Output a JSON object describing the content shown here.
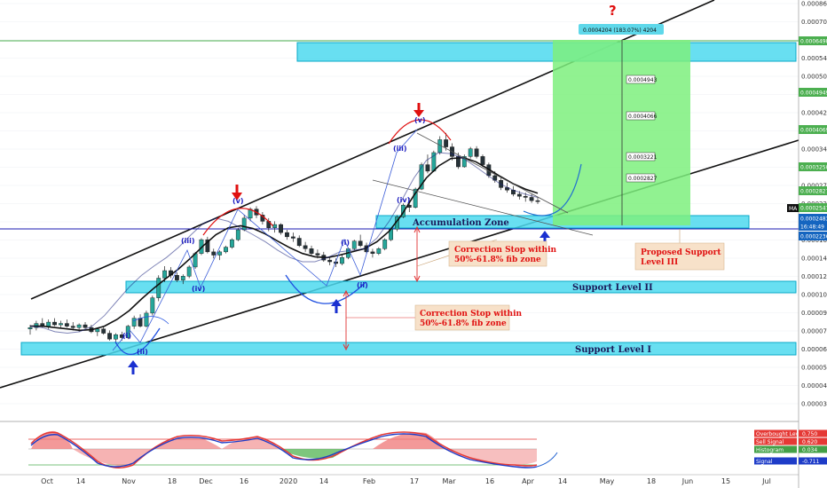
{
  "chart_data": {
    "type": "candlestick",
    "y_axis": {
      "scale": "log",
      "range": [
        0.00034,
        0.00086
      ],
      "ticks": [
        "0.0008600",
        "0.0007000",
        "0.0006000",
        "0.0005400",
        "0.0005000",
        "0.0004500",
        "0.0004200",
        "0.0003700",
        "0.0003400",
        "0.0003000",
        "0.0002700",
        "0.0002200",
        "0.0001800",
        "0.0001600",
        "0.0001400",
        "0.0001200",
        "0.0001050",
        "0.0000900",
        "0.0000760",
        "0.0000640",
        "0.0000520",
        "0.0000410",
        "0.0000300"
      ]
    },
    "x_axis": {
      "ticks": [
        "Oct",
        "14",
        "Nov",
        "18",
        "Dec",
        "16",
        "2020",
        "14",
        "Feb",
        "17",
        "Mar",
        "16",
        "Apr",
        "14",
        "May",
        "18",
        "Jun",
        "15",
        "Jul"
      ]
    },
    "price_labels": [
      {
        "text": "0.0006498",
        "color": "#4caf50"
      },
      {
        "text": "0.0004949",
        "color": "#4caf50"
      },
      {
        "text": "0.0004069",
        "color": "#4caf50"
      },
      {
        "text": "0.0003250",
        "color": "#4caf50"
      },
      {
        "text": "0.0002827",
        "color": "#4caf50"
      },
      {
        "text": "0.0002547",
        "color": "#4caf50"
      },
      {
        "text": "0.0002483",
        "color": "#1565c0"
      },
      {
        "text": "16:48:49",
        "color": "#1565c0"
      },
      {
        "text": "0.0002236",
        "color": "#1565c0"
      }
    ],
    "ma_tag": "MA",
    "target_label": "0.0004204 (183.07%) 4204",
    "question_mark": "?",
    "target_levels": [
      "0.0004943",
      "0.0004066",
      "0.0003221",
      "0.0002827"
    ],
    "zones": {
      "accumulation": "Accumulation Zone",
      "support_2": "Support Level II",
      "support_1": "Support Level I"
    },
    "annotations": {
      "correction_1": "Correction Stop within\n50%-61.8% fib zone",
      "correction_2": "Correction Stop within\n50%-61.8% fib zone",
      "proposed_support": "Proposed Support\nLevel III"
    },
    "wave_labels": [
      "(i)",
      "(ii)",
      "(iii)",
      "(iv)",
      "(v)",
      "(i)",
      "(ii)",
      "(iii)",
      "(iv)",
      "(v)"
    ],
    "candles": [
      [
        9.8e-05,
        0.000101,
        9.4e-05,
        9.9e-05
      ],
      [
        9.9e-05,
        0.000104,
        9.7e-05,
        0.000102
      ],
      [
        0.000102,
        0.000106,
        9.9e-05,
        0.0001
      ],
      [
        0.0001,
        0.000105,
        9.8e-05,
        0.000103
      ],
      [
        0.000103,
        0.000106,
        0.0001,
        0.000101
      ],
      [
        0.000101,
        0.000104,
        9.9e-05,
        0.000102
      ],
      [
        0.000102,
        0.000105,
        9.9e-05,
        0.0001
      ],
      [
        0.0001,
        0.000103,
        9.7e-05,
        9.9e-05
      ],
      [
        9.9e-05,
        0.000102,
        9.6e-05,
        0.000101
      ],
      [
        0.000101,
        0.000103,
        9.8e-05,
        9.9e-05
      ],
      [
        9.9e-05,
        0.000101,
        9.5e-05,
        9.6e-05
      ],
      [
        9.6e-05,
        9.9e-05,
        9.3e-05,
        9.8e-05
      ],
      [
        9.8e-05,
        0.0001,
        9.4e-05,
        9.5e-05
      ],
      [
        9.5e-05,
        9.7e-05,
        9e-05,
        9.1e-05
      ],
      [
        9.1e-05,
        9.5e-05,
        8.8e-05,
        9.4e-05
      ],
      [
        9.4e-05,
        9.6e-05,
        9e-05,
        9.2e-05
      ],
      [
        9.2e-05,
        0.000101,
        9.1e-05,
        0.0001
      ],
      [
        0.0001,
        0.000108,
        9.8e-05,
        0.000106
      ],
      [
        0.000106,
        0.000109,
        9.9e-05,
        0.0001
      ],
      [
        0.0001,
        0.000112,
        9.9e-05,
        0.00011
      ],
      [
        0.00011,
        0.000125,
        0.000108,
        0.000123
      ],
      [
        0.000123,
        0.000145,
        0.00012,
        0.000142
      ],
      [
        0.000142,
        0.000155,
        0.000138,
        0.00015
      ],
      [
        0.00015,
        0.000154,
        0.000142,
        0.000145
      ],
      [
        0.000145,
        0.000148,
        0.000138,
        0.00014
      ],
      [
        0.00014,
        0.000146,
        0.000136,
        0.000144
      ],
      [
        0.000144,
        0.000156,
        0.000142,
        0.000154
      ],
      [
        0.000154,
        0.000172,
        0.000152,
        0.00017
      ],
      [
        0.00017,
        0.00019,
        0.000168,
        0.000188
      ],
      [
        0.000188,
        0.000192,
        0.00017,
        0.000172
      ],
      [
        0.000172,
        0.000176,
        0.000164,
        0.000168
      ],
      [
        0.000168,
        0.000174,
        0.000162,
        0.000172
      ],
      [
        0.000172,
        0.00018,
        0.00017,
        0.000178
      ],
      [
        0.000178,
        0.00019,
        0.000176,
        0.000188
      ],
      [
        0.000188,
        0.000205,
        0.000186,
        0.000202
      ],
      [
        0.000202,
        0.000225,
        0.0002,
        0.00022
      ],
      [
        0.00022,
        0.000238,
        0.000215,
        0.000235
      ],
      [
        0.000235,
        0.00024,
        0.00022,
        0.000225
      ],
      [
        0.000225,
        0.00023,
        0.00021,
        0.000215
      ],
      [
        0.000215,
        0.00022,
        0.0002,
        0.000205
      ],
      [
        0.000205,
        0.000215,
        0.000198,
        0.00021
      ],
      [
        0.00021,
        0.000212,
        0.000195,
        0.000198
      ],
      [
        0.000198,
        0.000202,
        0.000188,
        0.000192
      ],
      [
        0.000192,
        0.000198,
        0.000185,
        0.00019
      ],
      [
        0.00019,
        0.000194,
        0.000178,
        0.00018
      ],
      [
        0.00018,
        0.000185,
        0.000172,
        0.000176
      ],
      [
        0.000176,
        0.00018,
        0.000168,
        0.00017
      ],
      [
        0.00017,
        0.000175,
        0.000164,
        0.000168
      ],
      [
        0.000168,
        0.000172,
        0.00016,
        0.000162
      ],
      [
        0.000162,
        0.000166,
        0.000156,
        0.00016
      ],
      [
        0.00016,
        0.000164,
        0.000154,
        0.000158
      ],
      [
        0.000158,
        0.000168,
        0.000156,
        0.000165
      ],
      [
        0.000165,
        0.000178,
        0.000163,
        0.000176
      ],
      [
        0.000176,
        0.000188,
        0.000174,
        0.000186
      ],
      [
        0.000186,
        0.000195,
        0.000178,
        0.00018
      ],
      [
        0.00018,
        0.000184,
        0.00017,
        0.000172
      ],
      [
        0.000172,
        0.000176,
        0.000165,
        0.00017
      ],
      [
        0.00017,
        0.000178,
        0.000168,
        0.000176
      ],
      [
        0.000176,
        0.00019,
        0.000174,
        0.000188
      ],
      [
        0.000188,
        0.000205,
        0.000186,
        0.000203
      ],
      [
        0.000203,
        0.000225,
        0.0002,
        0.000222
      ],
      [
        0.000222,
        0.000245,
        0.00022,
        0.000242
      ],
      [
        0.000242,
        0.000255,
        0.00023,
        0.000238
      ],
      [
        0.000238,
        0.000275,
        0.000236,
        0.000272
      ],
      [
        0.000272,
        0.00033,
        0.00027,
        0.000325
      ],
      [
        0.000325,
        0.00035,
        0.000305,
        0.00031
      ],
      [
        0.00031,
        0.00036,
        0.000308,
        0.000355
      ],
      [
        0.000355,
        0.0004,
        0.00035,
        0.00039
      ],
      [
        0.00039,
        0.00041,
        0.00036,
        0.00037
      ],
      [
        0.00037,
        0.00038,
        0.000335,
        0.000345
      ],
      [
        0.000345,
        0.000355,
        0.000315,
        0.00032
      ],
      [
        0.00032,
        0.00035,
        0.000318,
        0.000345
      ],
      [
        0.000345,
        0.00037,
        0.00034,
        0.000365
      ],
      [
        0.000365,
        0.000372,
        0.00034,
        0.000345
      ],
      [
        0.000345,
        0.00035,
        0.00032,
        0.000325
      ],
      [
        0.000325,
        0.00033,
        0.000295,
        0.0003
      ],
      [
        0.0003,
        0.00031,
        0.000285,
        0.00029
      ],
      [
        0.00029,
        0.000298,
        0.00027,
        0.000275
      ],
      [
        0.000275,
        0.000285,
        0.000265,
        0.00027
      ],
      [
        0.00027,
        0.000278,
        0.000258,
        0.000262
      ],
      [
        0.000262,
        0.000268,
        0.000252,
        0.000258
      ],
      [
        0.000258,
        0.000265,
        0.000248,
        0.000256
      ],
      [
        0.000256,
        0.000262,
        0.000246,
        0.00025
      ],
      [
        0.00025,
        0.000256,
        0.000244,
        0.0002483
      ]
    ],
    "ma_fast": [
      0.0001,
      9.9e-05,
      9.6e-05,
      9.5e-05,
      9.6e-05,
      0.0001,
      0.000108,
      0.00012,
      0.000133,
      0.000145,
      0.000155,
      0.000165,
      0.000178,
      0.000195,
      0.000212,
      0.00022,
      0.000215,
      0.000205,
      0.000195,
      0.000185,
      0.000174,
      0.000165,
      0.00016,
      0.00016,
      0.000165,
      0.000172,
      0.000174,
      0.000176,
      0.00019,
      0.000215,
      0.00025,
      0.000295,
      0.000335,
      0.000355,
      0.000352,
      0.00034,
      0.00032,
      0.0003,
      0.000282,
      0.00027,
      0.000262,
      0.000256
    ],
    "ma_slow": [
      0.0001,
      0.0001,
      9.9e-05,
      9.8e-05,
      9.7e-05,
      9.75e-05,
      0.0001,
      0.000105,
      0.000112,
      0.000122,
      0.000132,
      0.000142,
      0.000152,
      0.000165,
      0.00018,
      0.000195,
      0.000205,
      0.000208,
      0.000204,
      0.000196,
      0.000186,
      0.000177,
      0.00017,
      0.000166,
      0.000165,
      0.000168,
      0.000172,
      0.000176,
      0.000185,
      0.0002,
      0.000225,
      0.00026,
      0.000295,
      0.000322,
      0.00034,
      0.000342,
      0.000332,
      0.000315,
      0.000298,
      0.000283,
      0.000272,
      0.000264
    ],
    "macd": {
      "legend": [
        {
          "label": "Overbought Level",
          "value": "0.750",
          "color": "#e53935"
        },
        {
          "label": "Sell Signal",
          "value": "0.620",
          "color": "#e53935"
        },
        {
          "label": "Histogram",
          "value": "0.034",
          "color": "#43a047"
        },
        {
          "label": "Signal",
          "value": "-0.711",
          "color": "#1e3cc8"
        }
      ]
    }
  }
}
